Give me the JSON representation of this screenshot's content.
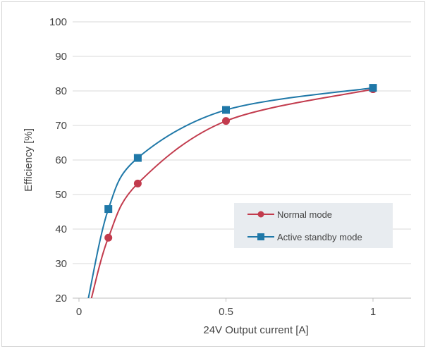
{
  "chart_data": {
    "type": "line",
    "title": "",
    "xlabel": "24V Output current [A]",
    "ylabel": "Efficiency [%]",
    "xlim": [
      0,
      1.1
    ],
    "ylim": [
      20,
      100
    ],
    "x_ticks": [
      0,
      0.5,
      1
    ],
    "x_tick_labels": [
      "0",
      "0.5",
      "1"
    ],
    "y_ticks": [
      20,
      30,
      40,
      50,
      60,
      70,
      80,
      90,
      100
    ],
    "y_tick_labels": [
      "20",
      "30",
      "40",
      "50",
      "60",
      "70",
      "80",
      "90",
      "100"
    ],
    "grid": "horizontal",
    "legend_position": "lower-right",
    "series": [
      {
        "name": "Normal mode",
        "color": "#c23b4d",
        "marker": "circle",
        "points": [
          [
            0.1,
            37.5
          ],
          [
            0.2,
            53.2
          ],
          [
            0.5,
            71.3
          ],
          [
            1.0,
            80.5
          ]
        ],
        "curve_start": [
          0.04,
          20
        ]
      },
      {
        "name": "Active standby mode",
        "color": "#1f78a8",
        "marker": "square",
        "points": [
          [
            0.1,
            45.8
          ],
          [
            0.2,
            60.6
          ],
          [
            0.5,
            74.5
          ],
          [
            1.0,
            80.9
          ]
        ],
        "curve_start": [
          0.03,
          20
        ]
      }
    ]
  }
}
